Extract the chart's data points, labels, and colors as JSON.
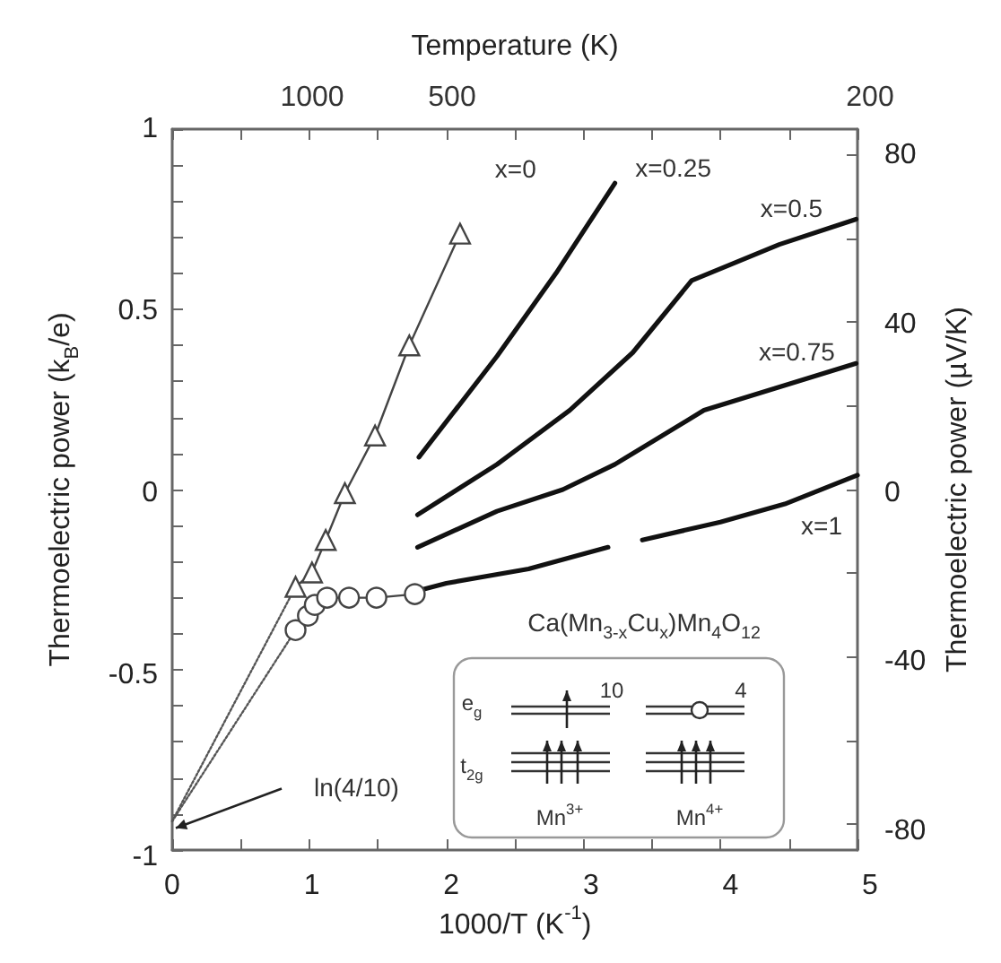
{
  "chart_data": {
    "type": "line",
    "xlabel": "1000/T (K$^{-1}$)",
    "ylabel": "Thermoelectric power (k$_{B}$/e)",
    "y2label": "Thermoelectric power (µV/K)",
    "x2label": "Temperature (K)",
    "xlim": [
      0,
      5
    ],
    "xticks": [
      0,
      {
        "value": 0.5,
        "label": null
      },
      1,
      {
        "value": 1.5,
        "label": null
      },
      2,
      {
        "value": 2.5,
        "label": null
      },
      3,
      {
        "value": 3.5,
        "label": null
      },
      4,
      {
        "value": 4.5,
        "label": null
      },
      5
    ],
    "ylim": [
      -1,
      1
    ],
    "yticks": [
      -1,
      {
        "value": -0.9,
        "label": null
      },
      {
        "value": -0.8,
        "label": null
      },
      {
        "value": -0.7,
        "label": null
      },
      {
        "value": -0.6,
        "label": null
      },
      -0.5,
      {
        "value": -0.4,
        "label": null
      },
      {
        "value": -0.3,
        "label": null
      },
      {
        "value": -0.2,
        "label": null
      },
      {
        "value": -0.1,
        "label": null
      },
      0,
      {
        "value": 0.1,
        "label": null
      },
      {
        "value": 0.2,
        "label": null
      },
      {
        "value": 0.3,
        "label": null
      },
      {
        "value": 0.4,
        "label": null
      },
      0.5,
      {
        "value": 0.6,
        "label": null
      },
      {
        "value": 0.7,
        "label": null
      },
      {
        "value": 0.8,
        "label": null
      },
      {
        "value": 0.9,
        "label": null
      },
      1
    ],
    "y2lim": [
      -86.17,
      86.17
    ],
    "y2ticks": [
      -80,
      {
        "value": -60,
        "label": null
      },
      -40,
      {
        "value": -20,
        "label": null
      },
      0,
      {
        "value": 20,
        "label": null
      },
      40,
      {
        "value": 60,
        "label": null
      },
      80
    ],
    "grid": false,
    "legend": false,
    "series": [
      {
        "name": "x=0",
        "color": "#444444",
        "marker": "triangle",
        "x": [
          0.9,
          1.02,
          1.12,
          1.26,
          1.48,
          1.73,
          2.1
        ],
        "values": [
          -0.27,
          -0.23,
          -0.14,
          -0.01,
          0.15,
          0.4,
          0.71
        ]
      },
      {
        "color": "#444444",
        "marker": "circle",
        "x": [
          0.9,
          0.99,
          1.04,
          1.13,
          1.29,
          1.49,
          1.77
        ],
        "values": [
          -0.39,
          -0.35,
          -0.32,
          -0.3,
          -0.3,
          -0.3,
          -0.29
        ]
      },
      {
        "name": "x=0.25",
        "color": "#111111",
        "x": [
          1.8,
          2.37,
          2.8,
          3.23
        ],
        "values": [
          0.09,
          0.37,
          0.6,
          0.85
        ]
      },
      {
        "name": "x=0.5",
        "color": "#111111",
        "x": [
          1.79,
          2.37,
          2.9,
          3.36,
          3.79,
          4.43,
          4.99
        ],
        "values": [
          -0.07,
          0.07,
          0.22,
          0.38,
          0.58,
          0.68,
          0.75
        ]
      },
      {
        "name": "x=0.75",
        "color": "#111111",
        "x": [
          1.79,
          2.37,
          2.85,
          3.23,
          3.88,
          4.99
        ],
        "values": [
          -0.16,
          -0.06,
          0.0,
          0.07,
          0.22,
          0.35
        ]
      },
      {
        "name": "x=1",
        "color": "#111111",
        "x": [
          1.8,
          2.0,
          2.6,
          3.18,
          3.3,
          3.43,
          4.0,
          4.47,
          5.0
        ],
        "values": [
          -0.28,
          -0.26,
          -0.22,
          -0.16,
          null,
          -0.14,
          -0.09,
          -0.04,
          0.04
        ]
      },
      {
        "color": "#555555",
        "line_style": "dotted",
        "x": [
          0,
          0.9
        ],
        "values": [
          -0.92,
          -0.27
        ]
      },
      {
        "color": "#555555",
        "line_style": "dotted",
        "x": [
          0,
          0.9
        ],
        "values": [
          -0.92,
          -0.39
        ]
      }
    ],
    "annotations": [
      {
        "text": "ln(4/10)",
        "x": 0,
        "y": -0.92
      },
      "1000",
      "500",
      "200",
      "Ca(Mn$_{3-x}$Cu$_{x}$)Mn$_{4}$O$_{12}$",
      "e$_{g}$",
      "t$_{2g}$",
      "10",
      "4",
      "Mn$^{3+}$",
      "Mn$^{4+}$"
    ]
  }
}
